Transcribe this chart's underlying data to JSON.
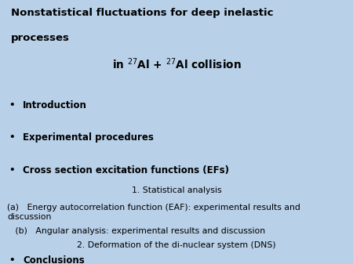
{
  "background_color": "#b8d0e8",
  "title_line1": "Nonstatistical fluctuations for deep inelastic",
  "title_line2": "processes",
  "subtitle": "in $^{27}$Al + $^{27}$Al collision",
  "bullet_items": [
    "Introduction",
    "Experimental procedures",
    "Cross section excitation functions (EFs)"
  ],
  "sub_item1": "1. Statistical analysis",
  "sub_item2": "(a)   Energy autocorrelation function (EAF): experimental results and\ndiscussion",
  "sub_item3": "   (b)   Angular analysis: experimental results and discussion",
  "sub_item4": "              2. Deformation of the di-nuclear system (DNS)",
  "footer_bullet": "Conclusions",
  "title_fontsize": 9.5,
  "subtitle_fontsize": 9.8,
  "bullet_fontsize": 8.5,
  "sub_fontsize": 7.8,
  "title_color": "#000000",
  "bullet_color": "#000000"
}
